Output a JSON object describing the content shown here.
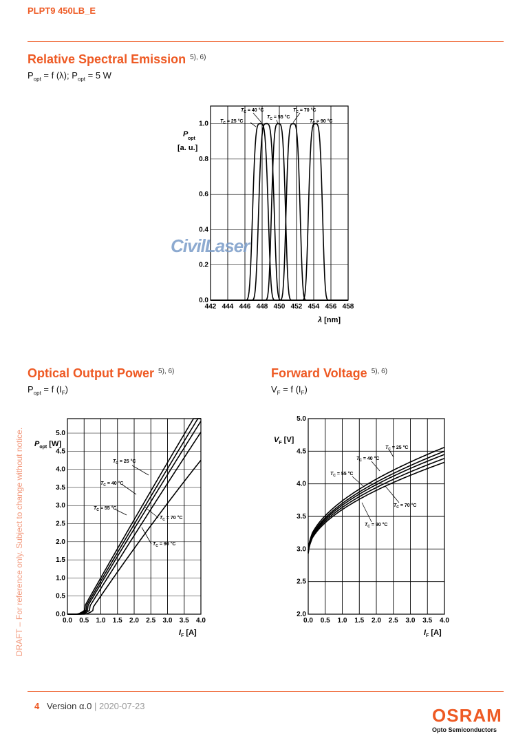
{
  "header": {
    "doc_id": "PLPT9 450LB_E"
  },
  "sections": [
    {
      "title": "Relative Spectral Emission",
      "refs": "5), 6)"
    },
    {
      "title": "Optical Output Power",
      "refs": "5), 6)"
    },
    {
      "title": "Forward Voltage",
      "refs": "5), 6)"
    }
  ],
  "formulas": {
    "spectral": {
      "p": "P",
      "p_sub": "opt",
      "mid": " = f (λ); P",
      "p2_sub": "opt",
      "end": " = 5 W"
    },
    "power": {
      "p": "P",
      "p_sub": "opt",
      "mid": " = f (I",
      "i_sub": "F",
      "end": ")"
    },
    "voltage": {
      "v": "V",
      "v_sub": "F",
      "mid": " = f (I",
      "i_sub": "F",
      "end": ")"
    }
  },
  "watermark": "CivilLaser",
  "draft_note": "DRAFT – For reference only. Subject to change without notice.",
  "footer": {
    "page": "4",
    "version": "Version α.0",
    "separator": "|",
    "date": "2020-07-23"
  },
  "logo": {
    "name": "OSRAM",
    "subtitle": "Opto Semiconductors"
  },
  "colors": {
    "accent": "#ee5a24"
  },
  "chart_data": [
    {
      "type": "line",
      "x_ticks": [
        "442",
        "444",
        "446",
        "448",
        "450",
        "452",
        "454",
        "456",
        "458"
      ],
      "y_ticks": [
        "0.0",
        "0.2",
        "0.4",
        "0.6",
        "0.8",
        "1.0"
      ],
      "xlim": [
        442,
        458
      ],
      "ylim": [
        0,
        1.1
      ],
      "xlabel_sym": "λ",
      "xlabel_unit": " [nm]",
      "ylabel_sym": "P",
      "ylabel_sub": "opt",
      "ylabel_unit": "[a. u.]",
      "series": [
        {
          "name": "T = 25 °C",
          "label": "T",
          "label_sub": "C",
          "label_end": " = 25 °C",
          "center": 447.8,
          "width": 1.0
        },
        {
          "name": "T = 40 °C",
          "label": "T",
          "label_sub": "C",
          "label_end": " = 40 °C",
          "center": 448.5,
          "width": 1.0
        },
        {
          "name": "T = 55 °C",
          "label": "T",
          "label_sub": "C",
          "label_end": " = 55 °C",
          "center": 449.9,
          "width": 0.9
        },
        {
          "name": "T = 70 °C",
          "label": "T",
          "label_sub": "C",
          "label_end": " = 70 °C",
          "center": 451.6,
          "width": 0.9
        },
        {
          "name": "T = 90 °C",
          "label": "T",
          "label_sub": "C",
          "label_end": " = 90 °C",
          "center": 454.2,
          "width": 0.9
        }
      ]
    },
    {
      "type": "line",
      "x_ticks": [
        "0.0",
        "0.5",
        "1.0",
        "1.5",
        "2.0",
        "2.5",
        "3.0",
        "3.5",
        "4.0"
      ],
      "y_ticks": [
        "0.0",
        "0.5",
        "1.0",
        "1.5",
        "2.0",
        "2.5",
        "3.0",
        "3.5",
        "4.0",
        "4.5",
        "5.0"
      ],
      "xlim": [
        0,
        4
      ],
      "ylim": [
        0,
        5.4
      ],
      "xlabel_sym": "I",
      "xlabel_sub": "F",
      "xlabel_unit": " [A]",
      "ylabel_sym": "P",
      "ylabel_sub": "opt",
      "ylabel_unit": " [W]",
      "series": [
        {
          "name": "T = 25 °C",
          "label": "T",
          "label_sub": "C",
          "label_end": " = 25 °C",
          "threshold": 0.38,
          "slope": 1.64
        },
        {
          "name": "T = 40 °C",
          "label": "T",
          "label_sub": "C",
          "label_end": " = 40 °C",
          "threshold": 0.42,
          "slope": 1.6
        },
        {
          "name": "T = 55 °C",
          "label": "T",
          "label_sub": "C",
          "label_end": " = 55 °C",
          "threshold": 0.46,
          "slope": 1.56
        },
        {
          "name": "T = 70 °C",
          "label": "T",
          "label_sub": "C",
          "label_end": " = 70 °C",
          "threshold": 0.52,
          "slope": 1.5
        },
        {
          "name": "T = 90 °C",
          "label": "T",
          "label_sub": "C",
          "label_end": " = 90 °C",
          "threshold": 0.62,
          "slope": 1.4
        }
      ]
    },
    {
      "type": "line",
      "x_ticks": [
        "0.0",
        "0.5",
        "1.0",
        "1.5",
        "2.0",
        "2.5",
        "3.0",
        "3.5",
        "4.0"
      ],
      "y_ticks": [
        "2.0",
        "2.5",
        "3.0",
        "3.5",
        "4.0",
        "4.5",
        "5.0"
      ],
      "xlim": [
        0,
        4
      ],
      "ylim": [
        2,
        5
      ],
      "xlabel_sym": "I",
      "xlabel_sub": "F",
      "xlabel_unit": " [A]",
      "ylabel_sym": "V",
      "ylabel_sub": "F",
      "ylabel_unit": " [V]",
      "series": [
        {
          "name": "T = 25 °C",
          "label": "T",
          "label_sub": "C",
          "label_end": " = 25 °C",
          "v0": 3.02,
          "v4": 4.56
        },
        {
          "name": "T = 40 °C",
          "label": "T",
          "label_sub": "C",
          "label_end": " = 40 °C",
          "v0": 3.0,
          "v4": 4.5
        },
        {
          "name": "T = 55 °C",
          "label": "T",
          "label_sub": "C",
          "label_end": " = 55 °C",
          "v0": 2.99,
          "v4": 4.45
        },
        {
          "name": "T = 70 °C",
          "label": "T",
          "label_sub": "C",
          "label_end": " = 70 °C",
          "v0": 2.98,
          "v4": 4.39
        },
        {
          "name": "T = 90 °C",
          "label": "T",
          "label_sub": "C",
          "label_end": " = 90 °C",
          "v0": 2.97,
          "v4": 4.33
        }
      ]
    }
  ]
}
